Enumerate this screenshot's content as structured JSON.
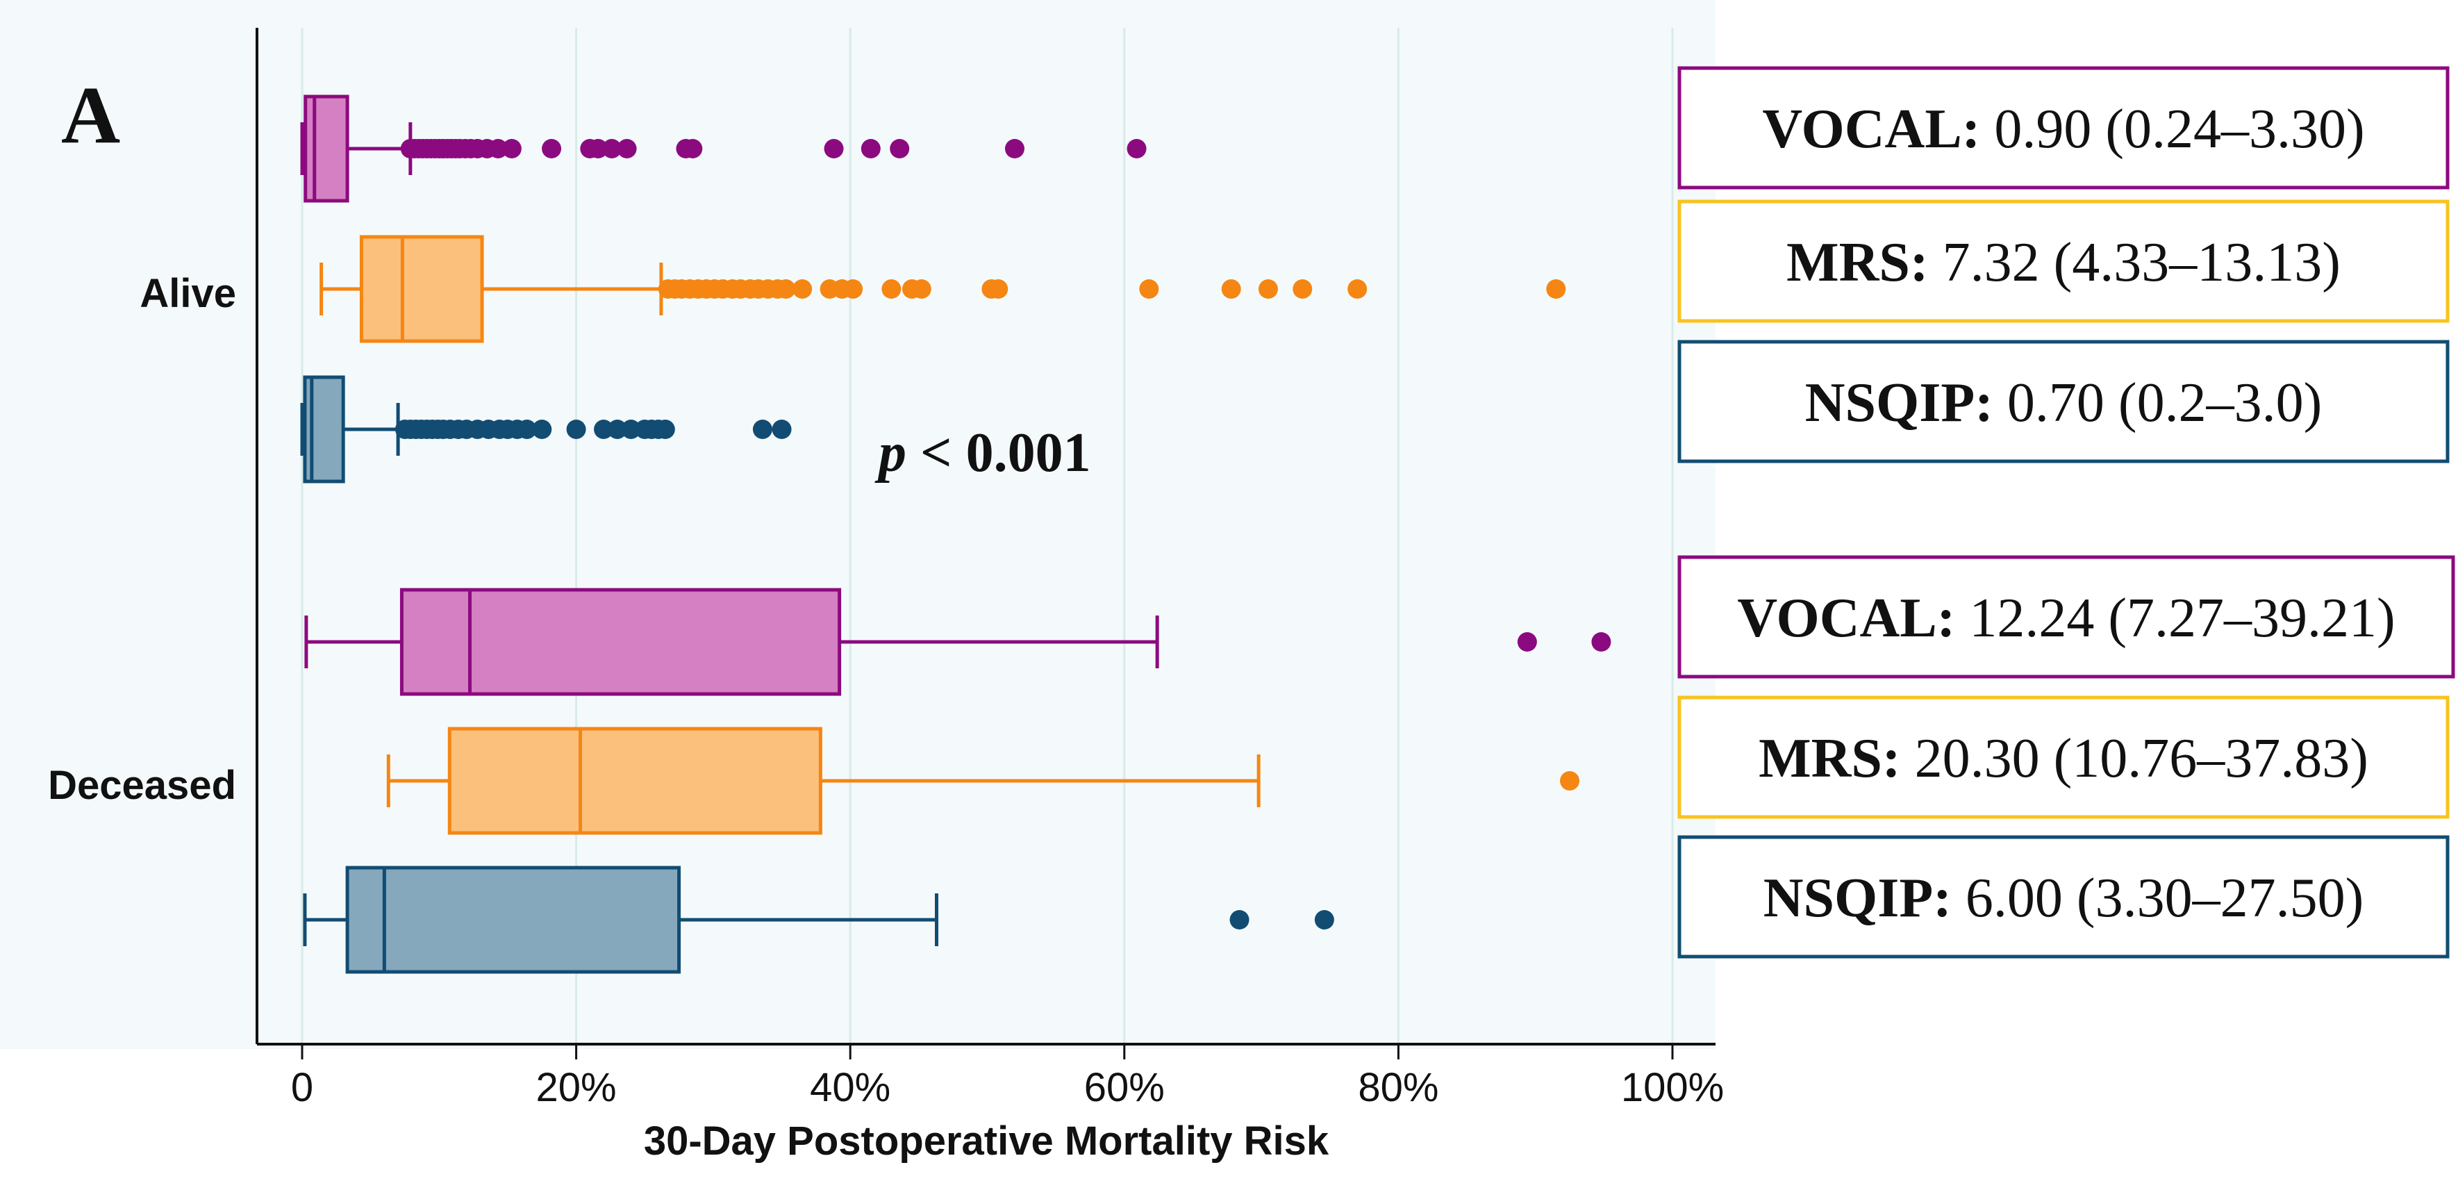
{
  "chart_data": {
    "type": "boxplot",
    "panel_label": "A",
    "xlabel": "30-Day Postoperative Mortality Risk",
    "xlim": [
      0,
      100
    ],
    "xticks": [
      0,
      20,
      40,
      60,
      80,
      100
    ],
    "xtick_labels": [
      "0",
      "20%",
      "40%",
      "60%",
      "80%",
      "100%"
    ],
    "grid": true,
    "pvalue": {
      "italic": "p",
      "rest": " < 0.001"
    },
    "colors": {
      "VOCAL": {
        "fill": "#d580c2",
        "stroke": "#8c0a7f"
      },
      "MRS": {
        "fill": "#fcc07d",
        "stroke": "#f58613"
      },
      "NSQIP": {
        "fill": "#85a8bd",
        "stroke": "#124c73"
      }
    },
    "groups": [
      {
        "name": "Alive",
        "boxes": [
          {
            "series": "VOCAL",
            "whisker_low": 0,
            "q1": 0.24,
            "median": 0.9,
            "q3": 3.3,
            "whisker_high": 7.9,
            "outliers": [
              7.9,
              8.2,
              8.5,
              8.8,
              9.1,
              9.4,
              9.7,
              10.0,
              10.3,
              10.6,
              10.9,
              11.2,
              11.5,
              11.9,
              12.3,
              12.8,
              13.5,
              14.3,
              15.3,
              18.2,
              21.0,
              21.6,
              22.6,
              23.7,
              28.0,
              28.5,
              38.8,
              41.5,
              43.6,
              52.0,
              60.9
            ]
          },
          {
            "series": "MRS",
            "whisker_low": 1.4,
            "q1": 4.33,
            "median": 7.32,
            "q3": 13.13,
            "whisker_high": 26.2,
            "outliers": [
              26.7,
              27.2,
              27.7,
              28.3,
              28.9,
              29.5,
              30.1,
              30.7,
              31.4,
              32.0,
              32.7,
              33.3,
              34.0,
              34.7,
              35.3,
              36.5,
              38.5,
              39.4,
              40.2,
              43.0,
              44.5,
              45.2,
              50.3,
              50.8,
              61.8,
              67.8,
              70.5,
              73.0,
              77.0,
              91.5
            ]
          },
          {
            "series": "NSQIP",
            "whisker_low": 0,
            "q1": 0.2,
            "median": 0.7,
            "q3": 3.0,
            "whisker_high": 7.0,
            "outliers": [
              7.5,
              7.9,
              8.3,
              8.7,
              9.1,
              9.5,
              9.9,
              10.3,
              10.8,
              11.4,
              12.0,
              12.8,
              13.6,
              14.4,
              15.0,
              15.7,
              16.4,
              17.5,
              20.0,
              22.0,
              23.0,
              24.0,
              25.0,
              25.5,
              26.0,
              26.5,
              33.6,
              35.0
            ]
          }
        ]
      },
      {
        "name": "Deceased",
        "boxes": [
          {
            "series": "VOCAL",
            "whisker_low": 0.3,
            "q1": 7.27,
            "median": 12.24,
            "q3": 39.21,
            "whisker_high": 62.4,
            "outliers": [
              89.4,
              94.8
            ]
          },
          {
            "series": "MRS",
            "whisker_low": 6.3,
            "q1": 10.76,
            "median": 20.3,
            "q3": 37.83,
            "whisker_high": 69.8,
            "outliers": [
              92.5
            ]
          },
          {
            "series": "NSQIP",
            "whisker_low": 0.2,
            "q1": 3.3,
            "median": 6.0,
            "q3": 27.5,
            "whisker_high": 46.3,
            "outliers": [
              68.4,
              74.6
            ]
          }
        ]
      }
    ],
    "annotations": [
      {
        "name": "VOCAL",
        "value": "0.90 (0.24–3.30)"
      },
      {
        "name": "MRS",
        "value": "7.32 (4.33–13.13)"
      },
      {
        "name": "NSQIP",
        "value": "0.70 (0.2–3.0)"
      },
      {
        "name": "VOCAL",
        "value": "12.24 (7.27–39.21)"
      },
      {
        "name": "MRS",
        "value": "20.30 (10.76–37.83)"
      },
      {
        "name": "NSQIP",
        "value": "6.00 (3.30–27.50)"
      }
    ]
  }
}
